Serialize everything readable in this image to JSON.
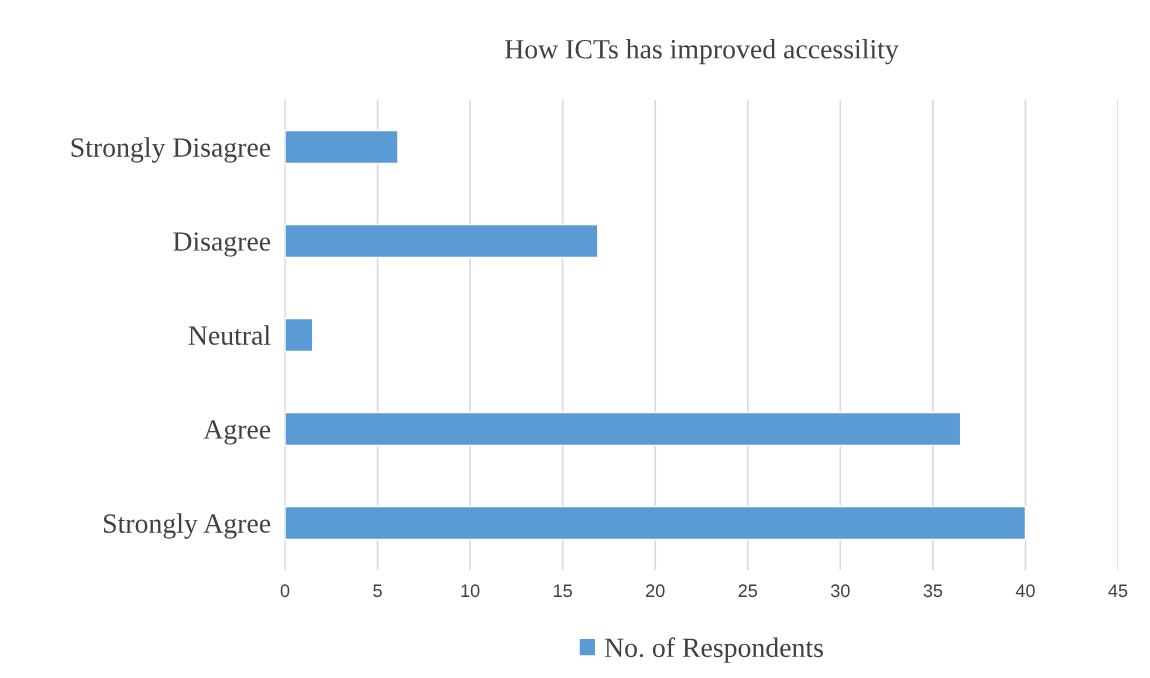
{
  "chart_data": {
    "type": "bar",
    "orientation": "horizontal",
    "title": "How ICTs has improved accessility",
    "categories": [
      "Strongly Disagree",
      "Disagree",
      "Neutral",
      "Agree",
      "Strongly Agree"
    ],
    "series": [
      {
        "name": "No. of Respondents",
        "color": "#5b9bd5",
        "values": [
          6.1,
          16.9,
          1.5,
          36.5,
          40
        ]
      }
    ],
    "xlim": [
      0,
      45
    ],
    "xticks": [
      0,
      5,
      10,
      15,
      20,
      25,
      30,
      35,
      40,
      45
    ],
    "grid": "x",
    "legend": "bottom"
  }
}
